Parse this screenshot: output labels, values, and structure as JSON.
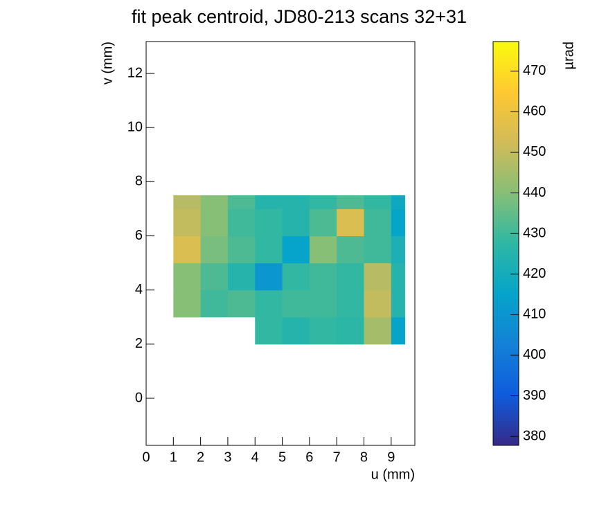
{
  "chart_data": {
    "type": "heatmap",
    "title": "fit peak centroid, JD80-213 scans 32+31",
    "x_label": "u (mm)",
    "y_label": "v (mm)",
    "z_label": "µrad",
    "x_edges": [
      1,
      2,
      3,
      4,
      5,
      6,
      7,
      8,
      9,
      9.5
    ],
    "y_edges": [
      2,
      3,
      4,
      5,
      6,
      7,
      7.5
    ],
    "z": [
      [
        null,
        null,
        null,
        428,
        425,
        428,
        427,
        445,
        415
      ],
      [
        440,
        430,
        432,
        428,
        430,
        430,
        428,
        450,
        425
      ],
      [
        440,
        432,
        425,
        410,
        428,
        430,
        428,
        448,
        425
      ],
      [
        455,
        438,
        432,
        428,
        415,
        440,
        432,
        430,
        422
      ],
      [
        450,
        440,
        430,
        428,
        425,
        432,
        455,
        430,
        415
      ],
      [
        448,
        440,
        432,
        425,
        425,
        428,
        432,
        428,
        418
      ]
    ],
    "xlim": [
      0,
      9.87
    ],
    "xticks": [
      0,
      1,
      2,
      3,
      4,
      5,
      6,
      7,
      8,
      9
    ],
    "ylim": [
      -1.74,
      13.18
    ],
    "yticks": [
      0,
      2,
      4,
      6,
      8,
      10,
      12
    ],
    "zlim": [
      377.8,
      477.3
    ],
    "zticks": [
      380,
      390,
      400,
      410,
      420,
      430,
      440,
      450,
      460,
      470
    ],
    "colormap": [
      "#352a87",
      "#0f5cdd",
      "#1481d6",
      "#06a4ca",
      "#2eb7a4",
      "#87bf77",
      "#d1bb59",
      "#fec832",
      "#f9fb0e"
    ]
  }
}
